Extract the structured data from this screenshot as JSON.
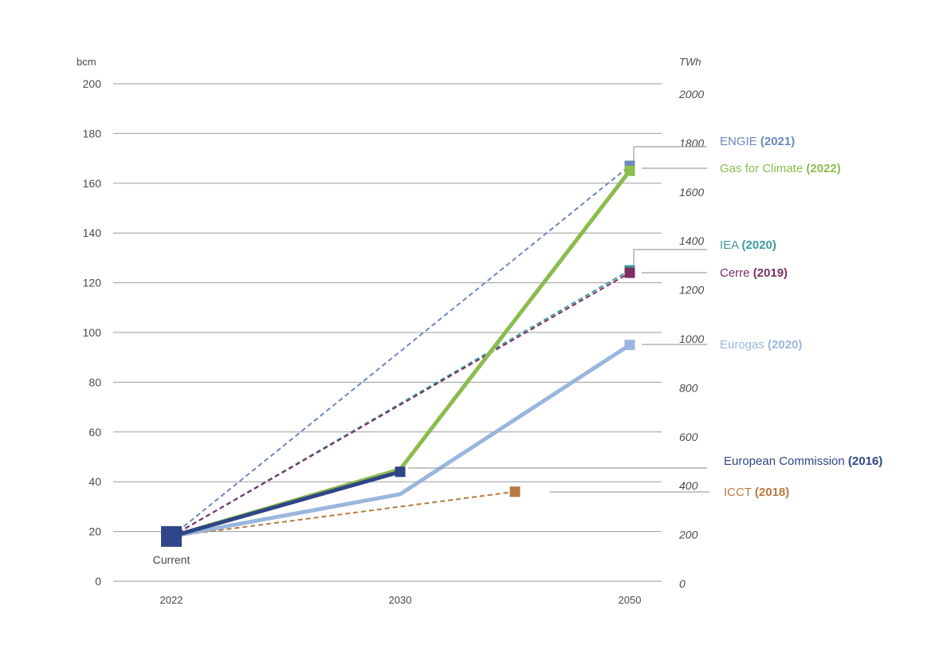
{
  "chart_data": {
    "type": "line",
    "title": "",
    "left_axis": {
      "unit": "bcm",
      "ticks": [
        0,
        20,
        40,
        60,
        80,
        100,
        120,
        140,
        160,
        180,
        200
      ],
      "ylim": [
        0,
        200
      ]
    },
    "right_axis": {
      "unit": "TWh",
      "ticks": [
        0,
        200,
        400,
        600,
        800,
        1000,
        1200,
        1400,
        1600,
        1800,
        2000
      ],
      "ylim": [
        0,
        2000
      ]
    },
    "x": [
      "2022",
      "2030",
      "2050"
    ],
    "grid": true,
    "start_label": "Current",
    "series": [
      {
        "name": "ENGIE",
        "year": "(2021)",
        "color": "#6d87c0",
        "style": "dashed",
        "points": [
          [
            2022,
            18
          ],
          [
            2050,
            167
          ]
        ]
      },
      {
        "name": "Gas for Climate",
        "year": "(2022)",
        "color": "#8cbb4e",
        "style": "solid",
        "points": [
          [
            2022,
            18
          ],
          [
            2030,
            45
          ],
          [
            2050,
            165
          ]
        ]
      },
      {
        "name": "IEA",
        "year": "(2020)",
        "color": "#3d9a9e",
        "style": "dashed",
        "points": [
          [
            2022,
            18
          ],
          [
            2050,
            125
          ]
        ]
      },
      {
        "name": "Cerre",
        "year": "(2019)",
        "color": "#7d2f62",
        "style": "dashed",
        "points": [
          [
            2022,
            18
          ],
          [
            2050,
            124
          ]
        ]
      },
      {
        "name": "Eurogas",
        "year": "(2020)",
        "color": "#9ab6dd",
        "style": "solid",
        "points": [
          [
            2022,
            18
          ],
          [
            2030,
            35
          ],
          [
            2050,
            95
          ]
        ]
      },
      {
        "name": "European Commission",
        "year": "(2016)",
        "color": "#2f4688",
        "style": "solid",
        "points": [
          [
            2022,
            18
          ],
          [
            2030,
            44
          ]
        ]
      },
      {
        "name": "ICCT",
        "year": "(2018)",
        "color": "#b87a40",
        "style": "dashed",
        "points": [
          [
            2022,
            18
          ],
          [
            2040,
            36
          ]
        ]
      }
    ]
  }
}
